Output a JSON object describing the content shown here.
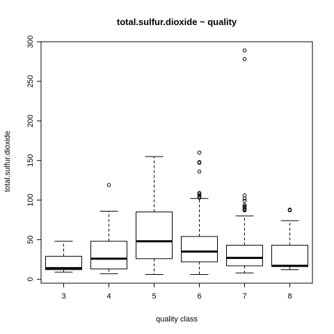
{
  "chart_data": {
    "type": "box",
    "title": "total.sulfur.dioxide ~ quality",
    "xlabel": "quality class",
    "ylabel": "total.sulfur.dioxide",
    "ylim": [
      -5,
      300
    ],
    "yticks": [
      0,
      50,
      100,
      150,
      200,
      250,
      300
    ],
    "grid": false,
    "categories": [
      "3",
      "4",
      "5",
      "6",
      "7",
      "8"
    ],
    "boxes": [
      {
        "category": "3",
        "whisker_low": 9,
        "q1": 12,
        "median": 14,
        "q3": 29,
        "whisker_high": 48,
        "outliers": []
      },
      {
        "category": "4",
        "whisker_low": 7,
        "q1": 13,
        "median": 26,
        "q3": 48,
        "whisker_high": 86,
        "outliers": [
          119
        ]
      },
      {
        "category": "5",
        "whisker_low": 6,
        "q1": 26,
        "median": 48,
        "q3": 85,
        "whisker_high": 155,
        "outliers": []
      },
      {
        "category": "6",
        "whisker_low": 6,
        "q1": 22,
        "median": 35,
        "q3": 54,
        "whisker_high": 102,
        "outliers": [
          103,
          104,
          106,
          108,
          109,
          136,
          147,
          148,
          160
        ]
      },
      {
        "category": "7",
        "whisker_low": 8,
        "q1": 17,
        "median": 27,
        "q3": 43,
        "whisker_high": 80,
        "outliers": [
          87,
          88,
          89,
          91,
          92,
          94,
          99,
          102,
          106,
          278,
          289
        ]
      },
      {
        "category": "8",
        "whisker_low": 12,
        "q1": 16,
        "median": 17,
        "q3": 43,
        "whisker_high": 74,
        "outliers": [
          87,
          88
        ]
      }
    ]
  }
}
